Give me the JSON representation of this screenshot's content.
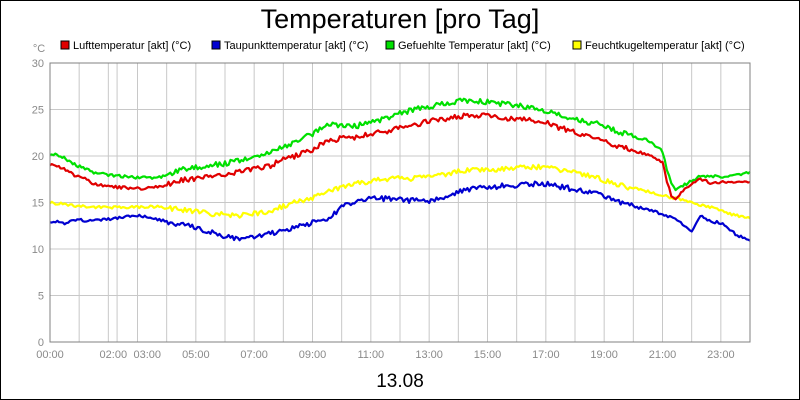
{
  "chart_data": {
    "type": "line",
    "title": "Temperaturen [pro Tag]",
    "ylabel": "°C",
    "xlabel": "13.08",
    "ylim": [
      0,
      30
    ],
    "xlim": [
      0,
      24
    ],
    "grid": true,
    "legend_position": "top",
    "y_ticks": [
      "0",
      "5",
      "10",
      "15",
      "20",
      "25",
      "30"
    ],
    "x_ticks": [
      {
        "value": 0,
        "label": "00:00"
      },
      {
        "value": 2.3,
        "label": "02:00"
      },
      {
        "value": 3,
        "label": "03:00"
      },
      {
        "value": 5,
        "label": "05:00"
      },
      {
        "value": 7,
        "label": "07:00"
      },
      {
        "value": 9,
        "label": "09:00"
      },
      {
        "value": 11,
        "label": "11:00"
      },
      {
        "value": 13,
        "label": "13:00"
      },
      {
        "value": 15,
        "label": "15:00"
      },
      {
        "value": 17,
        "label": "17:00"
      },
      {
        "value": 19,
        "label": "19:00"
      },
      {
        "value": 21,
        "label": "21:00"
      },
      {
        "value": 23,
        "label": "23:00"
      }
    ],
    "x_gridlines": [
      0,
      1,
      2,
      2.3,
      3,
      4,
      5,
      6,
      7,
      8,
      9,
      10,
      11,
      12,
      13,
      14,
      15,
      16,
      17,
      18,
      19,
      20,
      21,
      22,
      23,
      24
    ],
    "series": [
      {
        "name": "Lufttemperatur [akt] (°C)",
        "color": "#e00000",
        "points": [
          [
            0,
            19.1
          ],
          [
            0.3,
            18.9
          ],
          [
            0.6,
            18.4
          ],
          [
            0.9,
            17.8
          ],
          [
            1.2,
            17.6
          ],
          [
            1.5,
            17.0
          ],
          [
            2.0,
            16.7
          ],
          [
            2.5,
            16.6
          ],
          [
            3.0,
            16.5
          ],
          [
            3.5,
            16.6
          ],
          [
            4.0,
            16.9
          ],
          [
            4.5,
            17.4
          ],
          [
            5.0,
            17.6
          ],
          [
            5.5,
            17.8
          ],
          [
            6.0,
            17.9
          ],
          [
            6.5,
            18.3
          ],
          [
            7.0,
            18.6
          ],
          [
            7.5,
            18.9
          ],
          [
            8.0,
            19.6
          ],
          [
            8.5,
            20.1
          ],
          [
            9.0,
            20.7
          ],
          [
            9.5,
            21.6
          ],
          [
            10.0,
            21.9
          ],
          [
            10.5,
            22.0
          ],
          [
            11.0,
            22.4
          ],
          [
            11.5,
            22.6
          ],
          [
            12.0,
            23.0
          ],
          [
            12.5,
            23.4
          ],
          [
            13.0,
            23.7
          ],
          [
            13.5,
            24.0
          ],
          [
            14.0,
            24.2
          ],
          [
            14.5,
            24.4
          ],
          [
            15.0,
            24.3
          ],
          [
            15.5,
            24.1
          ],
          [
            16.0,
            24.0
          ],
          [
            16.5,
            23.8
          ],
          [
            17.0,
            23.6
          ],
          [
            17.5,
            23.0
          ],
          [
            18.0,
            22.6
          ],
          [
            18.5,
            22.1
          ],
          [
            19.0,
            21.6
          ],
          [
            19.5,
            21.0
          ],
          [
            20.0,
            20.6
          ],
          [
            20.5,
            20.2
          ],
          [
            21.0,
            19.4
          ],
          [
            21.15,
            17.2
          ],
          [
            21.3,
            15.8
          ],
          [
            21.45,
            15.3
          ],
          [
            21.7,
            16.3
          ],
          [
            22.0,
            16.9
          ],
          [
            22.3,
            17.5
          ],
          [
            22.5,
            17.3
          ],
          [
            22.7,
            17.0
          ],
          [
            23.0,
            17.2
          ],
          [
            23.5,
            17.1
          ],
          [
            24.0,
            17.2
          ]
        ]
      },
      {
        "name": "Taupunkttemperatur [akt] (°C)",
        "color": "#0000d0",
        "points": [
          [
            0,
            13.0
          ],
          [
            0.5,
            12.8
          ],
          [
            1.0,
            13.1
          ],
          [
            1.5,
            13.0
          ],
          [
            2.0,
            13.2
          ],
          [
            2.5,
            13.4
          ],
          [
            3.0,
            13.6
          ],
          [
            3.5,
            13.4
          ],
          [
            4.0,
            12.9
          ],
          [
            4.5,
            12.6
          ],
          [
            5.0,
            12.3
          ],
          [
            5.5,
            11.8
          ],
          [
            6.0,
            11.4
          ],
          [
            6.5,
            11.0
          ],
          [
            7.0,
            11.2
          ],
          [
            7.5,
            11.6
          ],
          [
            8.0,
            12.0
          ],
          [
            8.5,
            12.5
          ],
          [
            9.0,
            12.8
          ],
          [
            9.5,
            13.0
          ],
          [
            10.0,
            14.6
          ],
          [
            10.5,
            15.2
          ],
          [
            11.0,
            15.4
          ],
          [
            11.5,
            15.4
          ],
          [
            12.0,
            15.3
          ],
          [
            12.5,
            15.2
          ],
          [
            13.0,
            15.2
          ],
          [
            13.5,
            15.6
          ],
          [
            14.0,
            16.2
          ],
          [
            14.5,
            16.5
          ],
          [
            15.0,
            16.6
          ],
          [
            15.5,
            16.8
          ],
          [
            16.0,
            16.8
          ],
          [
            16.5,
            17.0
          ],
          [
            17.0,
            17.0
          ],
          [
            17.5,
            16.7
          ],
          [
            18.0,
            16.4
          ],
          [
            18.5,
            16.1
          ],
          [
            19.0,
            15.7
          ],
          [
            19.5,
            15.1
          ],
          [
            20.0,
            14.6
          ],
          [
            20.5,
            14.2
          ],
          [
            21.0,
            13.8
          ],
          [
            21.5,
            13.1
          ],
          [
            22.0,
            11.8
          ],
          [
            22.3,
            13.6
          ],
          [
            22.6,
            13.0
          ],
          [
            23.0,
            12.8
          ],
          [
            23.5,
            11.6
          ],
          [
            24.0,
            10.9
          ]
        ]
      },
      {
        "name": "Gefuehlte Temperatur [akt] (°C)",
        "color": "#00e000",
        "points": [
          [
            0,
            20.2
          ],
          [
            0.3,
            20.1
          ],
          [
            0.6,
            19.6
          ],
          [
            0.9,
            19.0
          ],
          [
            1.2,
            18.7
          ],
          [
            1.5,
            18.2
          ],
          [
            2.0,
            18.0
          ],
          [
            2.5,
            17.8
          ],
          [
            3.0,
            17.7
          ],
          [
            3.5,
            17.6
          ],
          [
            4.0,
            17.9
          ],
          [
            4.5,
            18.5
          ],
          [
            5.0,
            18.8
          ],
          [
            5.5,
            19.0
          ],
          [
            6.0,
            19.2
          ],
          [
            6.5,
            19.5
          ],
          [
            7.0,
            19.8
          ],
          [
            7.5,
            20.3
          ],
          [
            8.0,
            21.0
          ],
          [
            8.5,
            21.6
          ],
          [
            9.0,
            22.4
          ],
          [
            9.5,
            23.4
          ],
          [
            10.0,
            23.3
          ],
          [
            10.5,
            23.2
          ],
          [
            11.0,
            23.7
          ],
          [
            11.5,
            24.0
          ],
          [
            12.0,
            24.6
          ],
          [
            12.5,
            25.0
          ],
          [
            13.0,
            25.3
          ],
          [
            13.5,
            25.6
          ],
          [
            14.0,
            25.9
          ],
          [
            14.5,
            26.0
          ],
          [
            15.0,
            25.8
          ],
          [
            15.5,
            25.6
          ],
          [
            16.0,
            25.5
          ],
          [
            16.5,
            25.1
          ],
          [
            17.0,
            24.9
          ],
          [
            17.5,
            24.3
          ],
          [
            18.0,
            24.0
          ],
          [
            18.5,
            23.6
          ],
          [
            19.0,
            23.3
          ],
          [
            19.5,
            22.6
          ],
          [
            20.0,
            22.1
          ],
          [
            20.5,
            21.7
          ],
          [
            21.0,
            20.5
          ],
          [
            21.15,
            18.5
          ],
          [
            21.3,
            17.0
          ],
          [
            21.45,
            16.3
          ],
          [
            21.7,
            16.8
          ],
          [
            22.0,
            17.3
          ],
          [
            22.3,
            17.9
          ],
          [
            22.6,
            17.8
          ],
          [
            23.0,
            17.8
          ],
          [
            23.5,
            17.9
          ],
          [
            24.0,
            18.3
          ]
        ]
      },
      {
        "name": "Feuchtkugeltemperatur [akt] (°C)",
        "color": "#ffff00",
        "points": [
          [
            0,
            15.0
          ],
          [
            0.5,
            14.8
          ],
          [
            1.0,
            14.6
          ],
          [
            1.5,
            14.5
          ],
          [
            2.0,
            14.5
          ],
          [
            2.5,
            14.5
          ],
          [
            3.0,
            14.5
          ],
          [
            3.5,
            14.6
          ],
          [
            4.0,
            14.4
          ],
          [
            4.5,
            14.2
          ],
          [
            5.0,
            14.0
          ],
          [
            5.5,
            13.8
          ],
          [
            6.0,
            13.7
          ],
          [
            6.5,
            13.6
          ],
          [
            7.0,
            13.8
          ],
          [
            7.5,
            14.1
          ],
          [
            8.0,
            14.6
          ],
          [
            8.5,
            15.1
          ],
          [
            9.0,
            15.5
          ],
          [
            9.5,
            16.1
          ],
          [
            10.0,
            16.7
          ],
          [
            10.5,
            17.0
          ],
          [
            11.0,
            17.3
          ],
          [
            11.5,
            17.5
          ],
          [
            12.0,
            17.6
          ],
          [
            12.5,
            17.6
          ],
          [
            13.0,
            17.8
          ],
          [
            13.5,
            18.0
          ],
          [
            14.0,
            18.3
          ],
          [
            14.5,
            18.5
          ],
          [
            15.0,
            18.5
          ],
          [
            15.5,
            18.6
          ],
          [
            16.0,
            18.7
          ],
          [
            16.5,
            18.8
          ],
          [
            17.0,
            18.9
          ],
          [
            17.5,
            18.5
          ],
          [
            18.0,
            18.2
          ],
          [
            18.5,
            17.9
          ],
          [
            19.0,
            17.4
          ],
          [
            19.5,
            16.9
          ],
          [
            20.0,
            16.5
          ],
          [
            20.5,
            16.2
          ],
          [
            21.0,
            15.8
          ],
          [
            21.5,
            15.4
          ],
          [
            22.0,
            15.0
          ],
          [
            22.5,
            14.6
          ],
          [
            23.0,
            14.2
          ],
          [
            23.5,
            13.6
          ],
          [
            24.0,
            13.3
          ]
        ]
      }
    ]
  }
}
